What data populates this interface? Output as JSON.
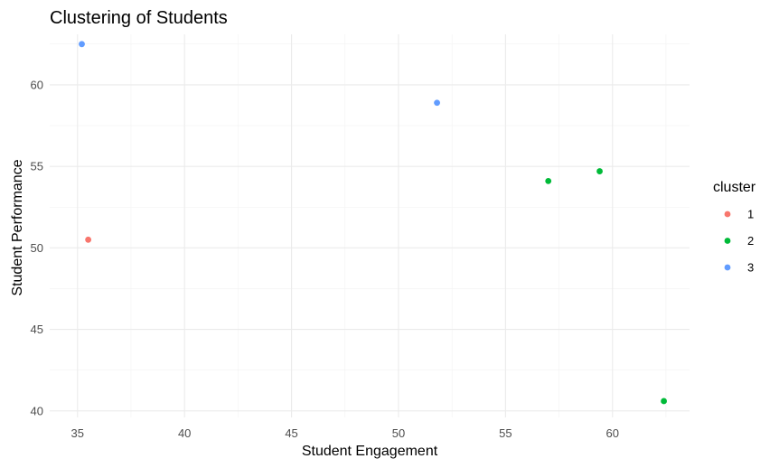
{
  "chart_data": {
    "type": "scatter",
    "title": "Clustering of Students",
    "xlabel": "Student Engagement",
    "ylabel": "Student Performance",
    "xlim": [
      33.7,
      63.6
    ],
    "ylim": [
      39.6,
      63.1
    ],
    "x_ticks": [
      "35",
      "40",
      "45",
      "50",
      "55",
      "60"
    ],
    "y_ticks": [
      "40",
      "45",
      "50",
      "55",
      "60"
    ],
    "grid": true,
    "legend": {
      "title": "cluster",
      "position": "right",
      "entries": [
        "1",
        "2",
        "3"
      ]
    },
    "series": [
      {
        "name": "1",
        "color": "#F8766D",
        "points": [
          {
            "x": 35.5,
            "y": 50.5
          }
        ]
      },
      {
        "name": "2",
        "color": "#00BA38",
        "points": [
          {
            "x": 57.0,
            "y": 54.1
          },
          {
            "x": 59.4,
            "y": 54.7
          },
          {
            "x": 62.4,
            "y": 40.6
          }
        ]
      },
      {
        "name": "3",
        "color": "#619CFF",
        "points": [
          {
            "x": 35.2,
            "y": 62.5
          },
          {
            "x": 51.8,
            "y": 58.9
          }
        ]
      }
    ]
  }
}
